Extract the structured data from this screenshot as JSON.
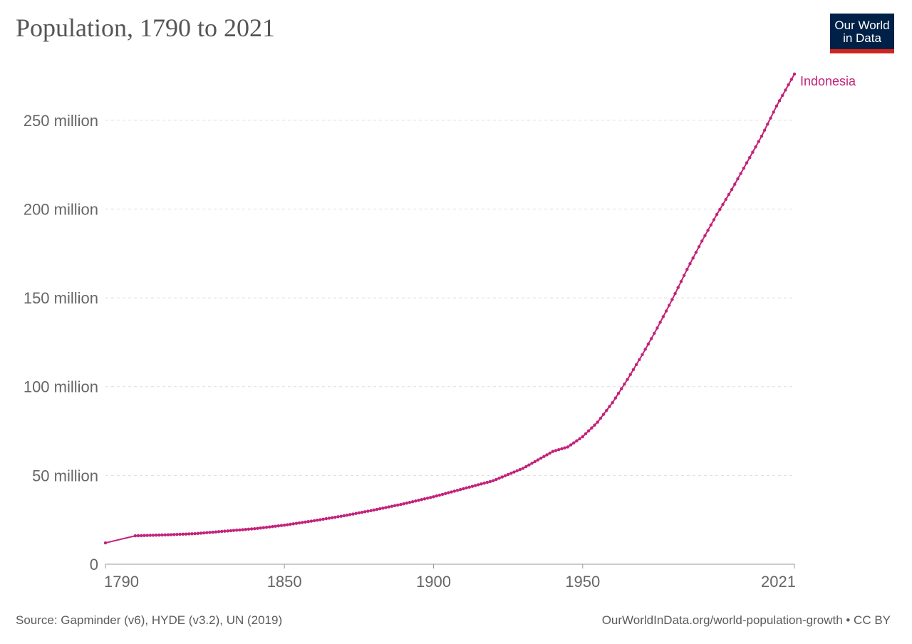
{
  "header": {
    "title": "Population, 1790 to 2021"
  },
  "logo": {
    "line1": "Our World",
    "line2": "in Data",
    "bg_color": "#002147",
    "accent_color": "#ce261e"
  },
  "footer": {
    "source": "Source: Gapminder (v6), HYDE (v3.2), UN (2019)",
    "credit": "OurWorldInData.org/world-population-growth • CC BY"
  },
  "chart_data": {
    "type": "line",
    "title": "Population, 1790 to 2021",
    "xlabel": "",
    "ylabel": "",
    "xlim": [
      1790,
      2021
    ],
    "ylim": [
      0,
      280000000
    ],
    "grid": true,
    "yticks": [
      {
        "value": 0,
        "label": "0"
      },
      {
        "value": 50000000,
        "label": "50 million"
      },
      {
        "value": 100000000,
        "label": "100 million"
      },
      {
        "value": 150000000,
        "label": "150 million"
      },
      {
        "value": 200000000,
        "label": "200 million"
      },
      {
        "value": 250000000,
        "label": "250 million"
      }
    ],
    "xticks": [
      {
        "value": 1790,
        "label": "1790"
      },
      {
        "value": 1850,
        "label": "1850"
      },
      {
        "value": 1900,
        "label": "1900"
      },
      {
        "value": 1950,
        "label": "1950"
      },
      {
        "value": 2021,
        "label": "2021"
      }
    ],
    "series": [
      {
        "name": "Indonesia",
        "color": "#c2227a",
        "points": [
          [
            1790,
            12000000
          ],
          [
            1800,
            16000000
          ],
          [
            1810,
            16500000
          ],
          [
            1820,
            17200000
          ],
          [
            1830,
            18600000
          ],
          [
            1840,
            20000000
          ],
          [
            1850,
            22000000
          ],
          [
            1860,
            24500000
          ],
          [
            1870,
            27300000
          ],
          [
            1880,
            30500000
          ],
          [
            1890,
            34000000
          ],
          [
            1900,
            38000000
          ],
          [
            1910,
            42500000
          ],
          [
            1920,
            47000000
          ],
          [
            1930,
            54000000
          ],
          [
            1940,
            63500000
          ],
          [
            1942,
            64500000
          ],
          [
            1945,
            66000000
          ],
          [
            1950,
            71800000
          ],
          [
            1955,
            80000000
          ],
          [
            1960,
            91000000
          ],
          [
            1965,
            104000000
          ],
          [
            1970,
            118000000
          ],
          [
            1975,
            133000000
          ],
          [
            1980,
            149000000
          ],
          [
            1985,
            166000000
          ],
          [
            1990,
            182000000
          ],
          [
            1995,
            197000000
          ],
          [
            2000,
            211000000
          ],
          [
            2005,
            226000000
          ],
          [
            2010,
            241000000
          ],
          [
            2015,
            258000000
          ],
          [
            2021,
            276000000
          ]
        ]
      }
    ]
  }
}
